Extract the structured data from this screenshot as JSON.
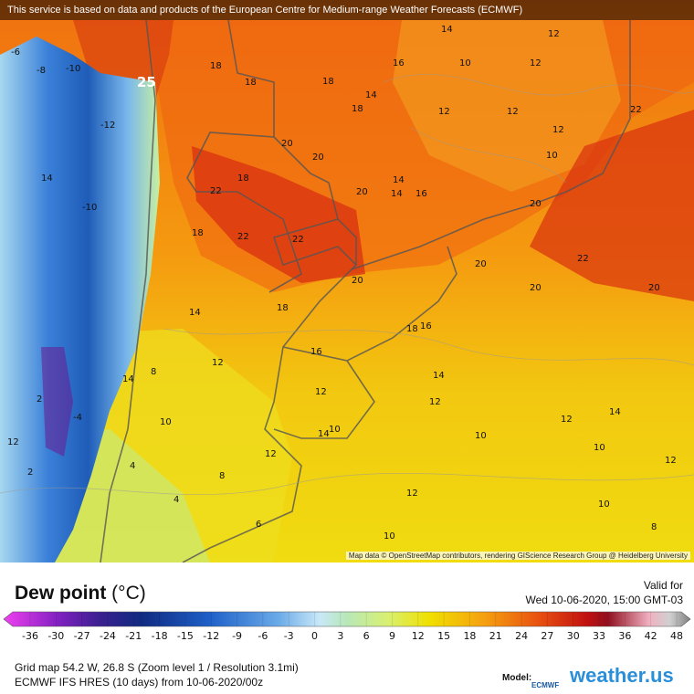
{
  "header": {
    "notice": "This service is based on data and products of the European Centre for Medium-range Weather Forecasts (ECMWF)"
  },
  "map": {
    "attribution": "Map data © OpenStreetMap contributors, rendering GIScience Research Group @ Heidelberg University",
    "max_label": 25,
    "labels": [
      18,
      18,
      16,
      14,
      12,
      12,
      10,
      12,
      14,
      18,
      20,
      22,
      22,
      20,
      14,
      12,
      12,
      10,
      20,
      18,
      22,
      18,
      20,
      16,
      14,
      20,
      22,
      20,
      20,
      22,
      18,
      14,
      18,
      18,
      16,
      20,
      16,
      12,
      14,
      12,
      12,
      10,
      14,
      14,
      12,
      10,
      12,
      12,
      10,
      8,
      10,
      10,
      12,
      10,
      8,
      6,
      4,
      4,
      14,
      12,
      -8,
      -10,
      -12,
      -6,
      14,
      8,
      -10,
      2,
      -4,
      2
    ]
  },
  "legend": {
    "title": "Dew point",
    "unit": "(°C)",
    "valid_label": "Valid for",
    "valid_time": "Wed 10-06-2020, 15:00 GMT-03",
    "ticks": [
      -36,
      -30,
      -27,
      -24,
      -21,
      -18,
      -15,
      -12,
      -9,
      -6,
      -3,
      0,
      3,
      6,
      9,
      12,
      15,
      18,
      21,
      24,
      27,
      30,
      33,
      36,
      42,
      48
    ]
  },
  "footer": {
    "grid": "Grid map 54.2 W, 26.8 S (Zoom level 1 / Resolution 3.1mi)",
    "model_run": "ECMWF IFS HRES (10 days) from 10-06-2020/00z",
    "model_label": "Model:",
    "model_logo": "ECMWF",
    "brand": "weather.us"
  }
}
